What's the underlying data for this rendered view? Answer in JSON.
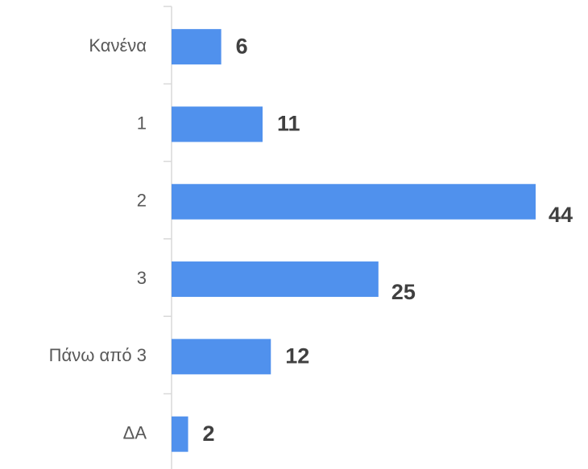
{
  "chart_data": {
    "type": "bar",
    "orientation": "horizontal",
    "categories": [
      "Κανένα",
      "1",
      "2",
      "3",
      "Πάνω από 3",
      "ΔΑ"
    ],
    "values": [
      6,
      11,
      44,
      25,
      12,
      2
    ],
    "color": "#5091ed"
  }
}
